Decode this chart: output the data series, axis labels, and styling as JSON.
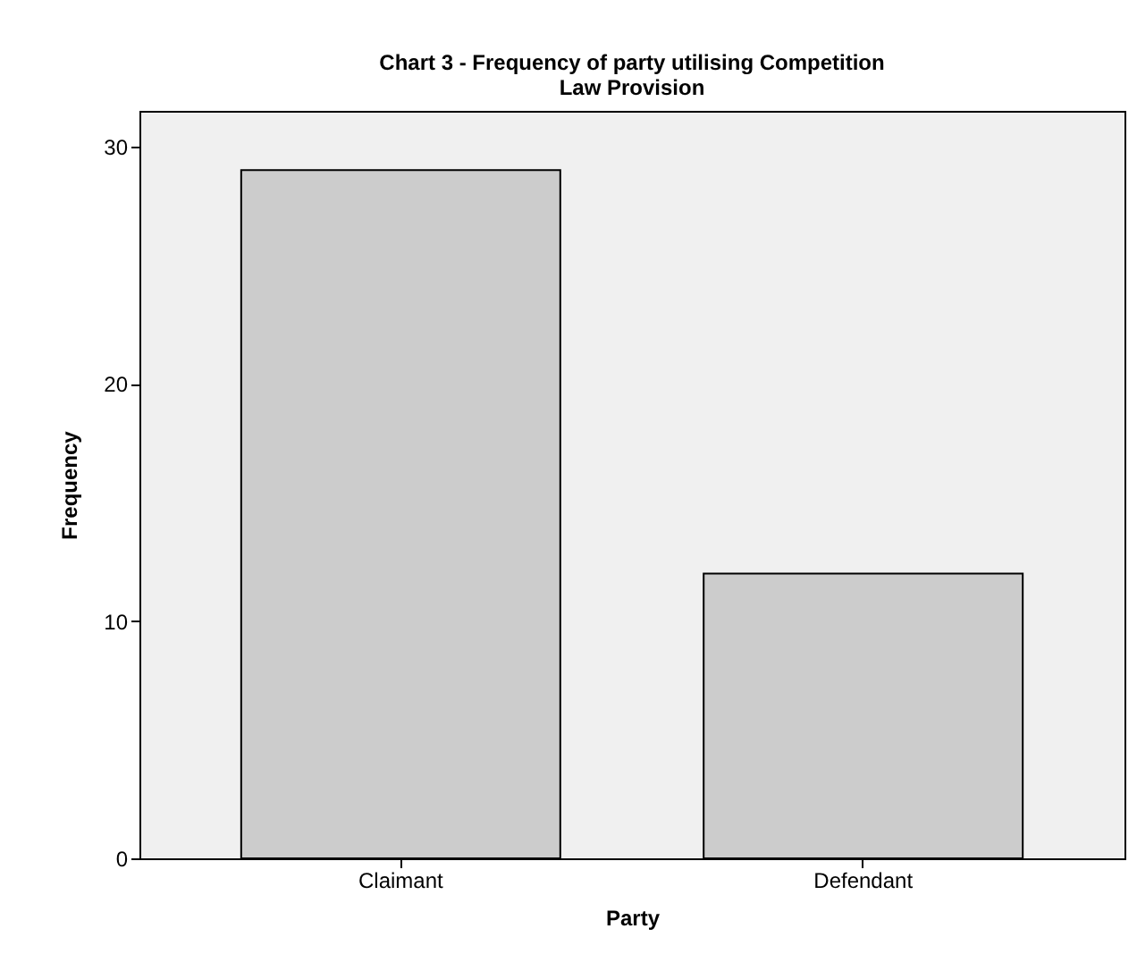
{
  "chart_data": {
    "type": "bar",
    "title": "Chart 3 - Frequency of party utilising Competition\nLaw Provision",
    "xlabel": "Party",
    "ylabel": "Frequency",
    "categories": [
      "Claimant",
      "Defendant"
    ],
    "values": [
      29,
      12
    ],
    "color": "#cccccc",
    "ylim": [
      0,
      31.5
    ],
    "yticks": [
      0,
      10,
      20,
      30
    ],
    "grid": false
  }
}
